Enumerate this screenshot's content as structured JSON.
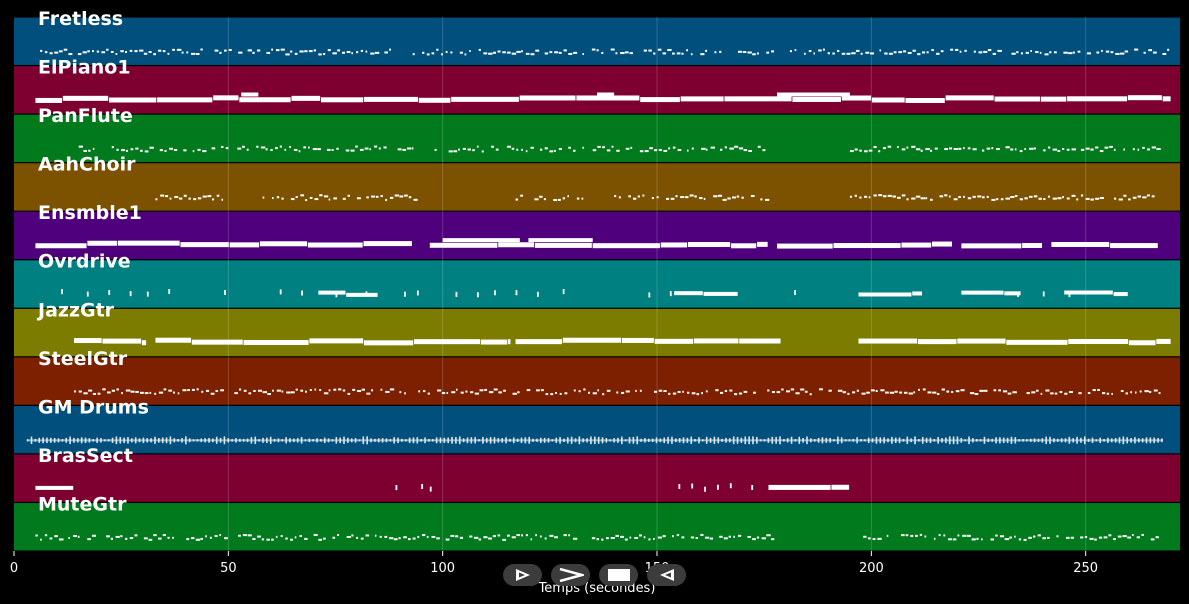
{
  "controls": [
    {
      "name": "play-forward-button",
      "icon": "play-outline-icon"
    },
    {
      "name": "fast-forward-button",
      "icon": "chevron-right-icon"
    },
    {
      "name": "stop-button",
      "icon": "stop-icon"
    },
    {
      "name": "rewind-button",
      "icon": "play-backward-icon"
    }
  ],
  "chart_data": {
    "type": "piano-roll",
    "xlabel": "Temps (secondes)",
    "xlim": [
      0,
      272
    ],
    "xticks": [
      0,
      50,
      100,
      150,
      200,
      250
    ],
    "grid": true,
    "tracks": [
      {
        "name": "Fretless",
        "color": "#004f7c",
        "note_color": "#ffffff",
        "segments": [
          [
            5,
            270,
            1
          ]
        ],
        "style": "dots"
      },
      {
        "name": "ElPiano1",
        "color": "#7d0030",
        "note_color": "#ffffff",
        "segments": [
          [
            5,
            270,
            3
          ]
        ],
        "style": "thick",
        "bumps": [
          [
            53,
            57
          ],
          [
            136,
            140
          ],
          [
            178,
            195
          ]
        ]
      },
      {
        "name": "PanFlute",
        "color": "#007a1c",
        "note_color": "#ffffff",
        "segments": [
          [
            14,
            32,
            1
          ],
          [
            34,
            50,
            1
          ],
          [
            51,
            95,
            1
          ],
          [
            97,
            113,
            1
          ],
          [
            115,
            133,
            1
          ],
          [
            135,
            176,
            1
          ],
          [
            195,
            267,
            1
          ]
        ],
        "style": "dots"
      },
      {
        "name": "AahChoir",
        "color": "#7c5200",
        "note_color": "#ffffff",
        "segments": [
          [
            33,
            49,
            1
          ],
          [
            58,
            94,
            1
          ],
          [
            117,
            133,
            1
          ],
          [
            140,
            176,
            1
          ],
          [
            195,
            267,
            1
          ]
        ],
        "style": "dots"
      },
      {
        "name": "Ensmble1",
        "color": "#4f007c",
        "note_color": "#ffffff",
        "segments": [
          [
            5,
            93,
            3
          ],
          [
            97,
            176,
            3
          ],
          [
            178,
            219,
            3
          ],
          [
            221,
            240,
            3
          ],
          [
            242,
            267,
            3
          ]
        ],
        "style": "thick",
        "bumps": [
          [
            100,
            118
          ],
          [
            120,
            135
          ]
        ]
      },
      {
        "name": "Ovrdrive",
        "color": "#008080",
        "note_color": "#ffffff",
        "segments": [
          [
            71,
            85,
            2
          ],
          [
            154,
            169,
            2
          ],
          [
            197,
            212,
            2
          ],
          [
            221,
            235,
            2
          ],
          [
            245,
            260,
            2
          ]
        ],
        "style": "thick",
        "sparse": [
          11,
          17,
          22,
          27,
          31,
          36,
          49,
          62,
          67,
          75,
          82,
          91,
          94,
          103,
          108,
          112,
          117,
          122,
          128,
          148,
          153,
          182,
          234,
          240,
          246
        ]
      },
      {
        "name": "JazzGtr",
        "color": "#7c7c00",
        "note_color": "#ffffff",
        "segments": [
          [
            14,
            31,
            3
          ],
          [
            33,
            116,
            3
          ],
          [
            117,
            179,
            3
          ],
          [
            197,
            270,
            3
          ]
        ],
        "style": "thick"
      },
      {
        "name": "SteelGtr",
        "color": "#7c2000",
        "note_color": "#ffffff",
        "segments": [
          [
            14,
            267,
            1
          ]
        ],
        "style": "dots"
      },
      {
        "name": "GM Drums",
        "color": "#004f7c",
        "note_color": "#dde8f0",
        "segments": [
          [
            3,
            268,
            2
          ]
        ],
        "style": "dense"
      },
      {
        "name": "BrasSect",
        "color": "#7d0030",
        "note_color": "#ffffff",
        "segments": [
          [
            5,
            14,
            2
          ],
          [
            176,
            195,
            3
          ]
        ],
        "style": "thick",
        "sparse": [
          89,
          95,
          97,
          155,
          158,
          161,
          164,
          167,
          172
        ]
      },
      {
        "name": "MuteGtr",
        "color": "#007a1c",
        "note_color": "#ffffff",
        "segments": [
          [
            5,
            177,
            1
          ],
          [
            197,
            267,
            1
          ]
        ],
        "style": "dots"
      }
    ]
  }
}
